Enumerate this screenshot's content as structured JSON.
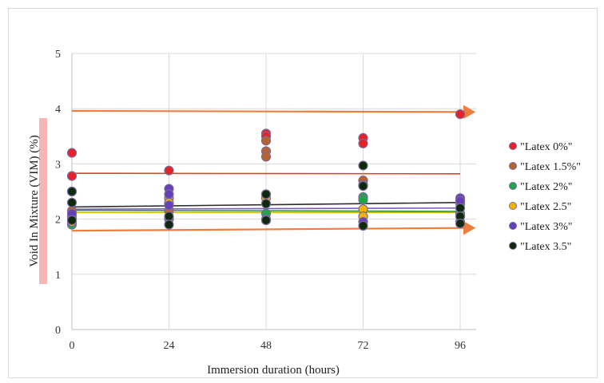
{
  "chart_data": {
    "type": "scatter",
    "title": "",
    "xlabel": "Immersion duration  (hours)",
    "ylabel": "Void In Mixture (VIM) (%)",
    "x_ticks": [
      "0",
      "24",
      "48",
      "72",
      "96"
    ],
    "y_ticks": [
      "0",
      "1",
      "2",
      "3",
      "4",
      "5"
    ],
    "xlim": [
      0,
      96
    ],
    "ylim": [
      0,
      5
    ],
    "grid": true,
    "legend_position": "right",
    "series": [
      {
        "name": "\"Latex 0%\"",
        "color": "#e8202a",
        "points": [
          [
            0,
            3.2
          ],
          [
            0,
            2.78
          ],
          [
            24,
            2.88
          ],
          [
            48,
            3.55
          ],
          [
            48,
            3.5
          ],
          [
            72,
            3.47
          ],
          [
            72,
            3.37
          ],
          [
            96,
            3.9
          ]
        ]
      },
      {
        "name": "\"Latex 1.5%\"",
        "color": "#b8632f",
        "points": [
          [
            0,
            2.5
          ],
          [
            0,
            2.15
          ],
          [
            0,
            1.95
          ],
          [
            24,
            2.27
          ],
          [
            24,
            2.15
          ],
          [
            48,
            3.42
          ],
          [
            48,
            3.23
          ],
          [
            48,
            3.13
          ],
          [
            72,
            2.7
          ],
          [
            72,
            2.62
          ],
          [
            96,
            2.28
          ]
        ]
      },
      {
        "name": "\"Latex 2%\"",
        "color": "#1fa64a",
        "points": [
          [
            0,
            2.0
          ],
          [
            0,
            1.9
          ],
          [
            24,
            2.0
          ],
          [
            48,
            2.1
          ],
          [
            48,
            1.98
          ],
          [
            72,
            2.4
          ],
          [
            72,
            2.35
          ],
          [
            96,
            2.1
          ],
          [
            96,
            1.95
          ]
        ]
      },
      {
        "name": "\"Latex 2.5\"",
        "color": "#f5b400",
        "points": [
          [
            0,
            2.05
          ],
          [
            0,
            1.95
          ],
          [
            24,
            2.38
          ],
          [
            24,
            2.3
          ],
          [
            48,
            2.45
          ],
          [
            48,
            2.38
          ],
          [
            72,
            2.18
          ],
          [
            72,
            2.05
          ],
          [
            96,
            2.05
          ]
        ]
      },
      {
        "name": "\"Latex 3%\"",
        "color": "#6540b8",
        "points": [
          [
            0,
            2.1
          ],
          [
            24,
            2.55
          ],
          [
            24,
            2.45
          ],
          [
            24,
            2.25
          ],
          [
            48,
            2.0
          ],
          [
            72,
            1.95
          ],
          [
            72,
            1.88
          ],
          [
            96,
            2.38
          ],
          [
            96,
            2.33
          ]
        ]
      },
      {
        "name": "\"Latex 3.5\"",
        "color": "#0d2a0d",
        "points": [
          [
            0,
            2.5
          ],
          [
            0,
            2.3
          ],
          [
            0,
            1.98
          ],
          [
            24,
            2.05
          ],
          [
            24,
            1.9
          ],
          [
            48,
            2.45
          ],
          [
            48,
            2.28
          ],
          [
            48,
            1.98
          ],
          [
            72,
            2.97
          ],
          [
            72,
            2.6
          ],
          [
            72,
            1.88
          ],
          [
            96,
            2.2
          ],
          [
            96,
            2.05
          ],
          [
            96,
            1.92
          ]
        ]
      }
    ],
    "trend_lines": [
      {
        "color": "#e04030",
        "from": [
          0,
          2.83
        ],
        "to": [
          96,
          2.82
        ]
      },
      {
        "color": "#2b2b2b",
        "from": [
          0,
          2.22
        ],
        "to": [
          96,
          2.3
        ]
      },
      {
        "color": "#7a5cc0",
        "from": [
          0,
          2.18
        ],
        "to": [
          96,
          2.2
        ]
      },
      {
        "color": "#3a8f3a",
        "from": [
          0,
          2.16
        ],
        "to": [
          96,
          2.14
        ]
      },
      {
        "color": "#d8b400",
        "from": [
          0,
          2.12
        ],
        "to": [
          96,
          2.12
        ]
      }
    ],
    "arrows": [
      {
        "color": "#ee7d3e",
        "from": [
          0,
          3.96
        ],
        "to": [
          96,
          3.94
        ]
      },
      {
        "color": "#ee7d3e",
        "from": [
          0,
          1.79
        ],
        "to": [
          96,
          1.84
        ]
      }
    ]
  }
}
